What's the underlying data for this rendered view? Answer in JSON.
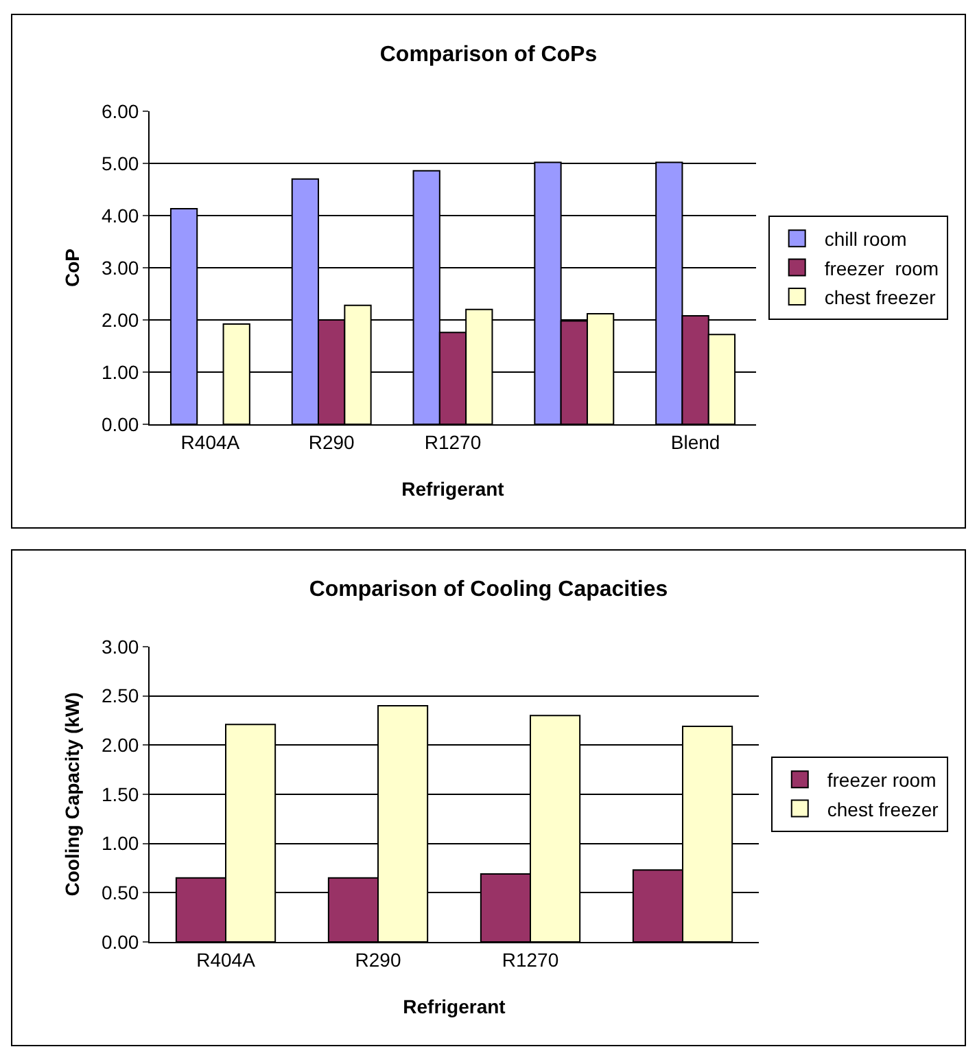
{
  "chart_data": [
    {
      "type": "bar",
      "title": "Comparison of CoPs",
      "xlabel": "Refrigerant",
      "ylabel": "CoP",
      "categories": [
        "R404A",
        "R290",
        "R1270",
        null,
        "Blend"
      ],
      "series": [
        {
          "name": "chill room",
          "color": "#9999ff",
          "values": [
            4.13,
            4.7,
            4.86,
            5.02,
            5.02
          ]
        },
        {
          "name": "freezer  room",
          "color": "#993366",
          "values": [
            null,
            2.0,
            1.76,
            1.98,
            2.08
          ]
        },
        {
          "name": "chest freezer",
          "color": "#ffffcc",
          "values": [
            1.92,
            2.28,
            2.2,
            2.12,
            1.72
          ]
        }
      ],
      "ylim": [
        0,
        6
      ],
      "yticks": [
        {
          "value": 0,
          "label": "0.00"
        },
        {
          "value": 1,
          "label": "1.00"
        },
        {
          "value": 2,
          "label": "2.00"
        },
        {
          "value": 3,
          "label": "3.00"
        },
        {
          "value": 4,
          "label": "4.00"
        },
        {
          "value": 5,
          "label": "5.00"
        },
        {
          "value": 6,
          "label": "6.00"
        }
      ],
      "grid": "y",
      "legend": "right"
    },
    {
      "type": "bar",
      "title": "Comparison of Cooling Capacities",
      "xlabel": "Refrigerant",
      "ylabel": "Cooling Capacity (kW)",
      "categories": [
        "R404A",
        "R290",
        "R1270",
        null
      ],
      "series": [
        {
          "name": "freezer room",
          "color": "#993366",
          "values": [
            0.65,
            0.65,
            0.69,
            0.73
          ]
        },
        {
          "name": "chest freezer",
          "color": "#ffffcc",
          "values": [
            2.21,
            2.4,
            2.3,
            2.19
          ]
        }
      ],
      "ylim": [
        0,
        3
      ],
      "yticks": [
        {
          "value": 0,
          "label": "0.00"
        },
        {
          "value": 0.5,
          "label": "0.50"
        },
        {
          "value": 1,
          "label": "1.00"
        },
        {
          "value": 1.5,
          "label": "1.50"
        },
        {
          "value": 2,
          "label": "2.00"
        },
        {
          "value": 2.5,
          "label": "2.50"
        },
        {
          "value": 3,
          "label": "3.00"
        }
      ],
      "grid": "y",
      "legend": "right"
    }
  ]
}
